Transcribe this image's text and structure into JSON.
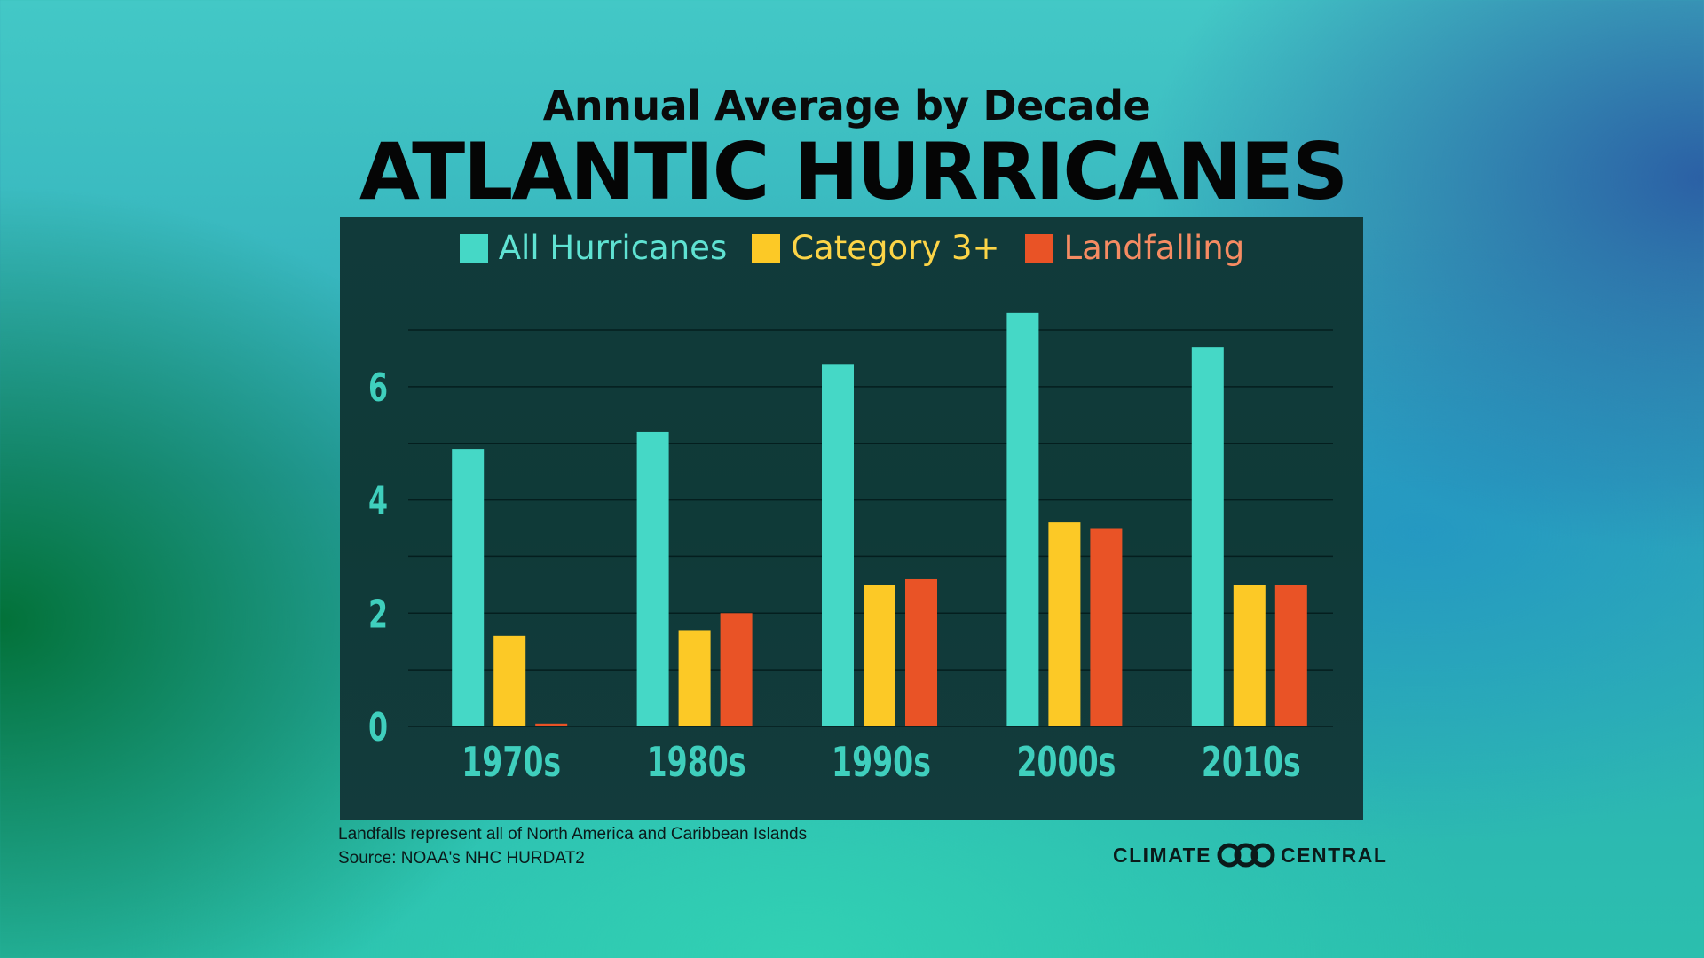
{
  "header": {
    "subtitle": "Annual Average by Decade",
    "title": "ATLANTIC HURRICANES"
  },
  "colors": {
    "all": "#45d8c6",
    "cat3": "#fcc926",
    "landfall": "#e95326",
    "axis_text": "#3fcfbd",
    "gridline": "#041e1e",
    "panel": "#113a3a"
  },
  "legend": [
    {
      "label": "All Hurricanes",
      "color": "#45d8c6",
      "text_color": "#5fe2d2"
    },
    {
      "label": "Category 3+",
      "color": "#fcc926",
      "text_color": "#fcd447"
    },
    {
      "label": "Landfalling",
      "color": "#e95326",
      "text_color": "#f68b62"
    }
  ],
  "chart_data": {
    "type": "bar",
    "title": "ATLANTIC HURRICANES",
    "subtitle": "Annual Average by Decade",
    "xlabel": "",
    "ylabel": "",
    "categories": [
      "1970s",
      "1980s",
      "1990s",
      "2000s",
      "2010s"
    ],
    "series": [
      {
        "name": "All Hurricanes",
        "values": [
          4.9,
          5.2,
          6.4,
          7.3,
          6.7
        ]
      },
      {
        "name": "Category 3+",
        "values": [
          1.6,
          1.7,
          2.5,
          3.6,
          2.5
        ]
      },
      {
        "name": "Landfalling",
        "values": [
          0.05,
          2.0,
          2.6,
          3.5,
          2.5
        ]
      }
    ],
    "y_ticks": [
      "0",
      "2",
      "4",
      "6"
    ],
    "ylim": [
      0,
      7
    ],
    "grid": true,
    "legend_position": "top-center"
  },
  "footer": {
    "note1": "Landfalls represent all of North America and Caribbean Islands",
    "note2": "Source: NOAA's NHC HURDAT2",
    "logo_left": "CLIMATE",
    "logo_right": "CENTRAL"
  }
}
